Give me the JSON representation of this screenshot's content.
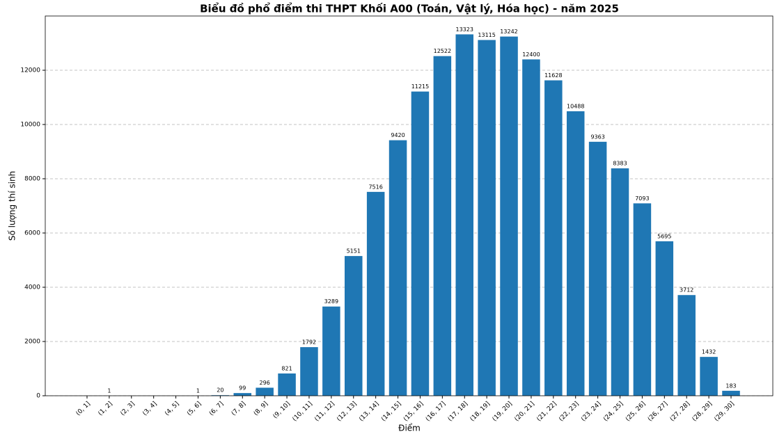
{
  "chart_data": {
    "type": "bar",
    "title": "Biểu đồ phổ điểm thi THPT Khối A00 (Toán, Vật lý, Hóa học) - năm 2025",
    "x_label": "Điểm",
    "y_label": "Số lượng thí sinh",
    "categories": [
      "(0, 1]",
      "(1, 2]",
      "(2, 3]",
      "(3, 4]",
      "(4, 5]",
      "(5, 6]",
      "(6, 7]",
      "(7, 8]",
      "(8, 9]",
      "(9, 10]",
      "(10, 11]",
      "(11, 12]",
      "(12, 13]",
      "(13, 14]",
      "(14, 15]",
      "(15, 16]",
      "(16, 17]",
      "(17, 18]",
      "(18, 19]",
      "(19, 20]",
      "(20, 21]",
      "(21, 22]",
      "(22, 23]",
      "(23, 24]",
      "(24, 25]",
      "(25, 26]",
      "(26, 27]",
      "(27, 28]",
      "(28, 29]",
      "(29, 30]"
    ],
    "values": [
      0,
      1,
      0,
      0,
      0,
      1,
      20,
      99,
      296,
      821,
      1792,
      3289,
      5151,
      7516,
      9420,
      11215,
      12522,
      13323,
      13115,
      13242,
      12400,
      11628,
      10488,
      9363,
      8383,
      7093,
      5695,
      3712,
      1432,
      183
    ],
    "color": "#1f77b4",
    "ylim": [
      0,
      14000
    ],
    "yticks": [
      0,
      2000,
      4000,
      6000,
      8000,
      10000,
      12000
    ],
    "grid": true
  }
}
